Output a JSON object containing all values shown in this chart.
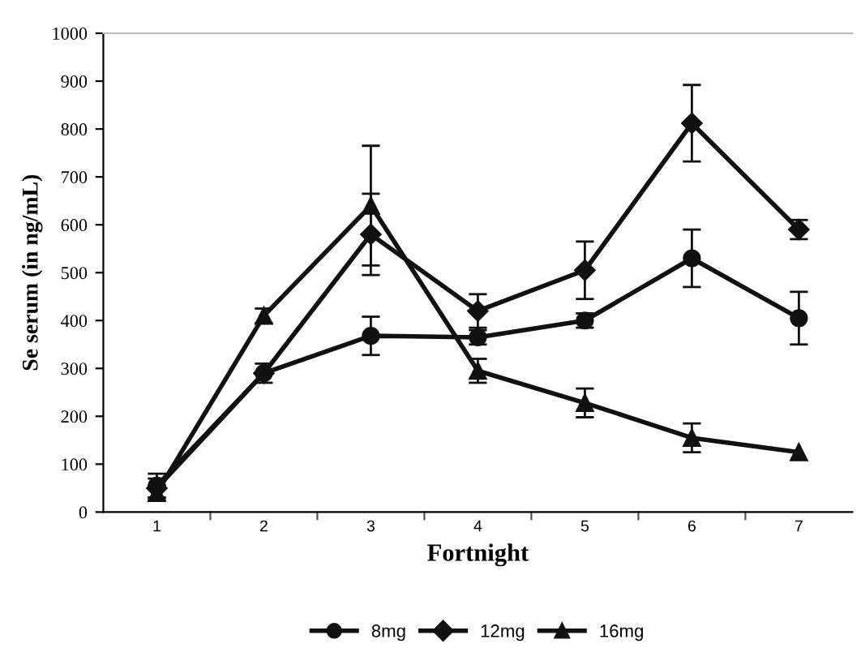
{
  "chart_data": {
    "type": "line",
    "xlabel": "Fortnight",
    "ylabel": "Se serum (in ng/mL)",
    "categories": [
      "1",
      "2",
      "3",
      "4",
      "5",
      "6",
      "7"
    ],
    "series": [
      {
        "name": "8mg",
        "color": "#111111",
        "marker": "circle",
        "values": [
          55,
          290,
          368,
          365,
          400,
          530,
          405
        ],
        "errors": [
          25,
          20,
          40,
          15,
          15,
          60,
          55
        ]
      },
      {
        "name": "12mg",
        "color": "#111111",
        "marker": "diamond",
        "values": [
          50,
          290,
          580,
          420,
          505,
          812,
          590
        ],
        "errors": [
          20,
          null,
          85,
          35,
          60,
          80,
          20
        ]
      },
      {
        "name": "16mg",
        "color": "#111111",
        "marker": "triangle",
        "values": [
          40,
          410,
          640,
          295,
          228,
          155,
          125
        ],
        "errors": [
          15,
          15,
          125,
          25,
          30,
          30,
          null
        ]
      }
    ],
    "ylim": [
      0,
      1000
    ],
    "yticks": [
      0,
      100,
      200,
      300,
      400,
      500,
      600,
      700,
      800,
      900,
      1000
    ],
    "grid": false,
    "legend": "bottom",
    "line_style": "solid"
  }
}
